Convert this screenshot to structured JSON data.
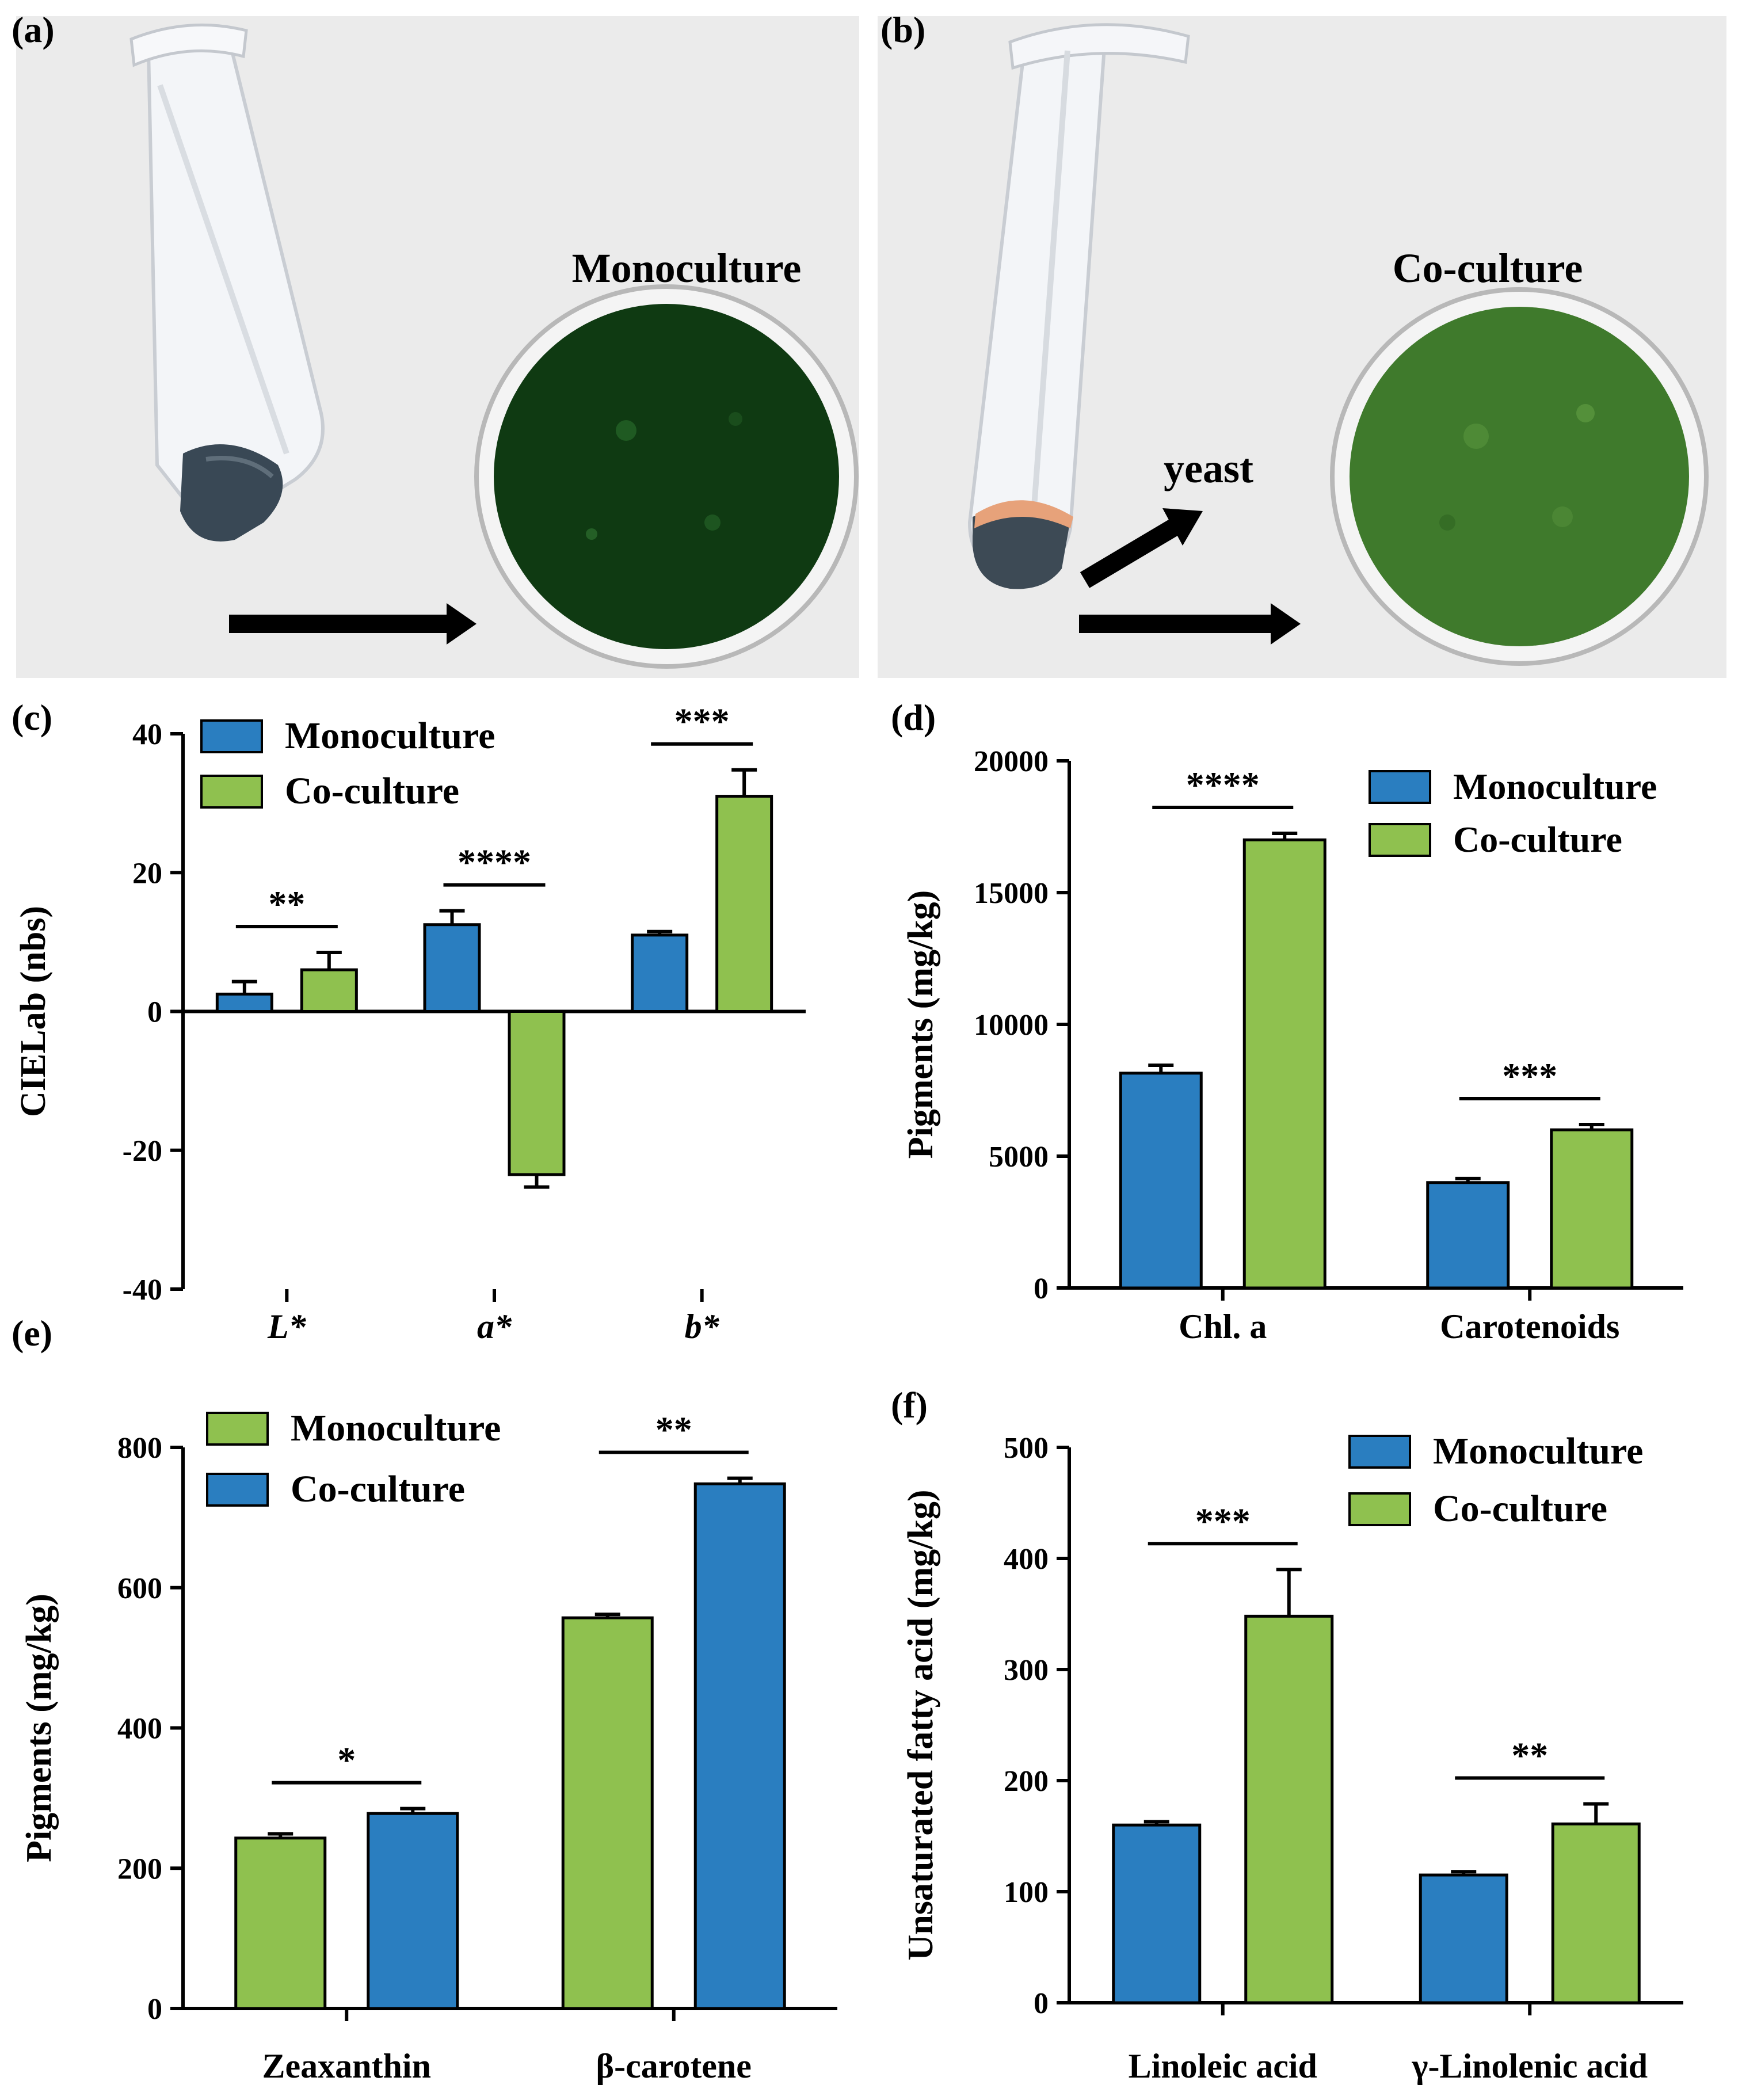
{
  "panels": {
    "a": {
      "letter": "(a)",
      "label": "Monoculture"
    },
    "b": {
      "letter": "(b)",
      "label": "Co-culture",
      "yeast_label": "yeast"
    },
    "c": {
      "letter": "(c)"
    },
    "d": {
      "letter": "(d)"
    },
    "e": {
      "letter": "(e)"
    },
    "f": {
      "letter": "(f)"
    }
  },
  "colors": {
    "blue": "#2a7ec0",
    "green": "#8fc14f",
    "powder_mono": "#0f3a12",
    "powder_co": "#3f7a2c",
    "photo_bg": "#ebebeb"
  },
  "chart_data": [
    {
      "id": "c",
      "type": "bar",
      "categories": [
        "L*",
        "a*",
        "b*"
      ],
      "category_italic": true,
      "ylabel": "CIELab (nbs)",
      "ylim": [
        -40,
        40
      ],
      "yticks": [
        -40,
        -20,
        0,
        20,
        40
      ],
      "legend": "top-left",
      "series": [
        {
          "name": "Monoculture",
          "color": "blue",
          "values": [
            2.5,
            12.5,
            11
          ],
          "errors": [
            1.8,
            2,
            0.5
          ]
        },
        {
          "name": "Co-culture",
          "color": "green",
          "values": [
            6,
            -23.5,
            31
          ],
          "errors": [
            2.5,
            1.8,
            3.8
          ]
        }
      ],
      "significance": [
        "**",
        "****",
        "***"
      ]
    },
    {
      "id": "d",
      "type": "bar",
      "categories": [
        "Chl. a",
        "Carotenoids"
      ],
      "ylabel": "Pigments (mg/kg)",
      "ylim": [
        0,
        20000
      ],
      "yticks": [
        0,
        5000,
        10000,
        15000,
        20000
      ],
      "legend": "top-right",
      "series": [
        {
          "name": "Monoculture",
          "color": "blue",
          "values": [
            8150,
            4000
          ],
          "errors": [
            300,
            150
          ]
        },
        {
          "name": "Co-culture",
          "color": "green",
          "values": [
            17000,
            6000
          ],
          "errors": [
            250,
            200
          ]
        }
      ],
      "significance": [
        "****",
        "***"
      ]
    },
    {
      "id": "e",
      "type": "bar",
      "categories": [
        "Zeaxanthin",
        "β-carotene"
      ],
      "ylabel": "Pigments (mg/kg)",
      "ylim": [
        0,
        800
      ],
      "yticks": [
        0,
        200,
        400,
        600,
        800
      ],
      "legend": "top-left",
      "series": [
        {
          "name": "Monoculture",
          "color": "green",
          "values": [
            243,
            557
          ],
          "errors": [
            6,
            5
          ]
        },
        {
          "name": "Co-culture",
          "color": "blue",
          "values": [
            278,
            748
          ],
          "errors": [
            7,
            8
          ]
        }
      ],
      "significance": [
        "*",
        "**"
      ]
    },
    {
      "id": "f",
      "type": "bar",
      "categories": [
        "Linoleic acid",
        "γ-Linolenic acid"
      ],
      "ylabel": "Unsaturated fatty acid (mg/kg)",
      "ylim": [
        0,
        500
      ],
      "yticks": [
        0,
        100,
        200,
        300,
        400,
        500
      ],
      "legend": "top-right",
      "series": [
        {
          "name": "Monoculture",
          "color": "blue",
          "values": [
            160,
            115
          ],
          "errors": [
            3,
            3
          ]
        },
        {
          "name": "Co-culture",
          "color": "green",
          "values": [
            348,
            161
          ],
          "errors": [
            42,
            18
          ]
        }
      ],
      "significance": [
        "***",
        "**"
      ]
    }
  ]
}
